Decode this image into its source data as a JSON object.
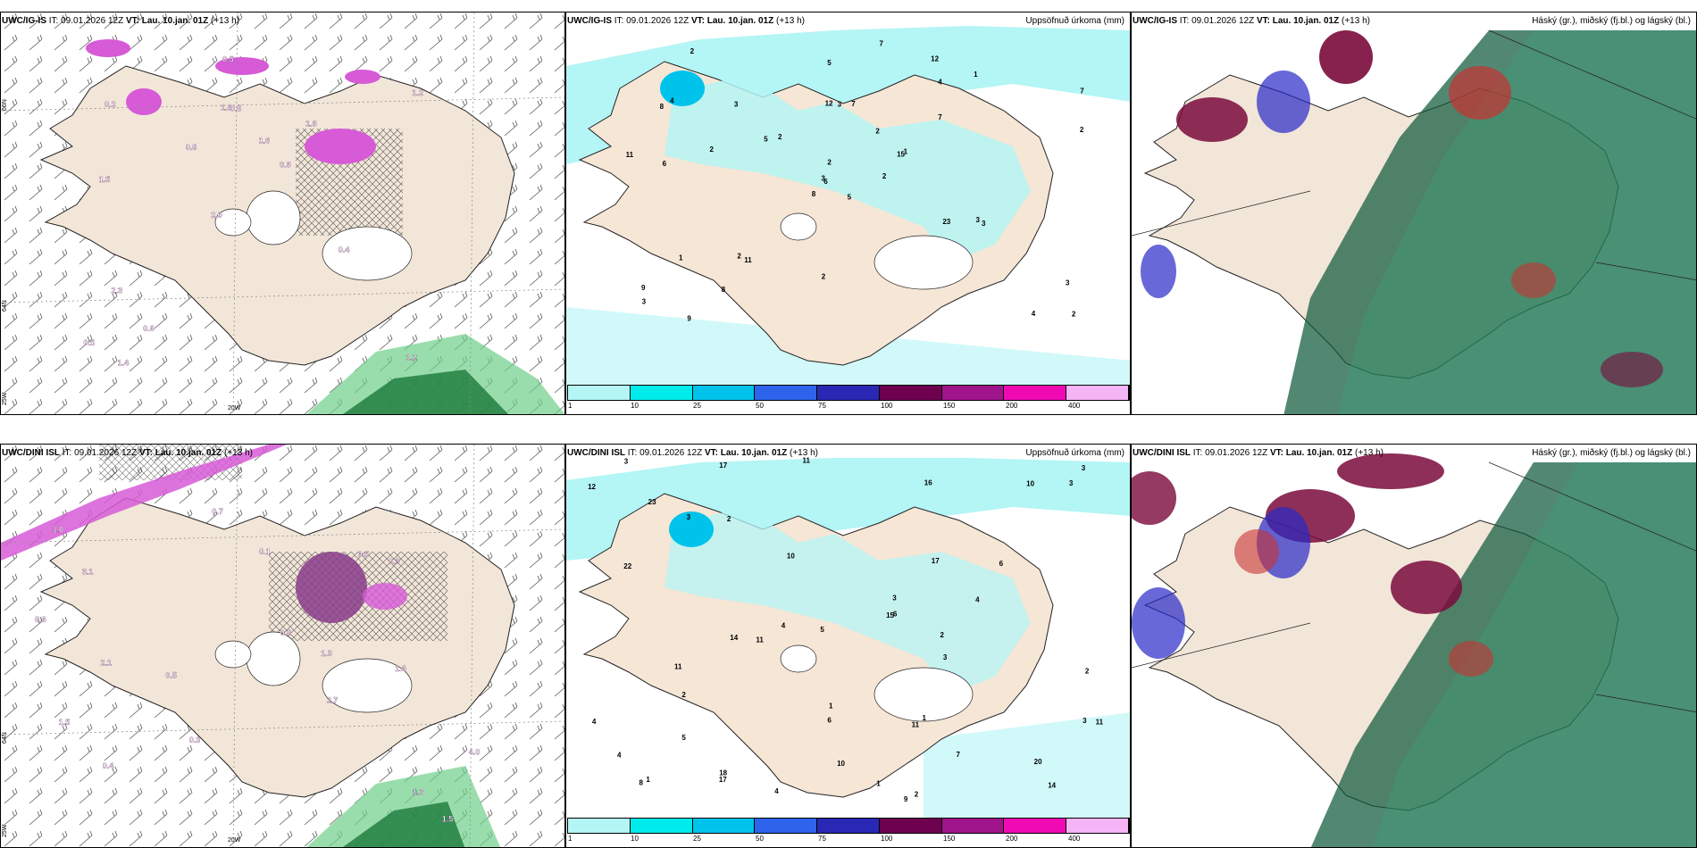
{
  "panels": [
    {
      "id": "p1",
      "model": "UWC/IG-IS",
      "it_label": "IT:",
      "it": "09.01.2026 12Z",
      "vt_label": "VT:",
      "vt": "Lau. 10.jan. 01Z",
      "lead": "(+13 h)",
      "right_title": ""
    },
    {
      "id": "p2",
      "model": "UWC/IG-IS",
      "it_label": "IT:",
      "it": "09.01.2026 12Z",
      "vt_label": "VT:",
      "vt": "Lau. 10.jan. 01Z",
      "lead": "(+13 h)",
      "right_title": "Uppsöfnuð úrkoma (mm)"
    },
    {
      "id": "p3",
      "model": "UWC/IG-IS",
      "it_label": "IT:",
      "it": "09.01.2026 12Z",
      "vt_label": "VT:",
      "vt": "Lau. 10.jan. 01Z",
      "lead": "(+13 h)",
      "right_title": "Háský (gr.), miðský (fj.bl.) og lágský (bl.)"
    },
    {
      "id": "p4",
      "model": "UWC/DINI ISL",
      "it_label": "IT:",
      "it": "09.01.2026 12Z",
      "vt_label": "VT:",
      "vt": "Lau. 10.jan. 01Z",
      "lead": "(+13 h)",
      "right_title": ""
    },
    {
      "id": "p5",
      "model": "UWC/DINI ISL",
      "it_label": "IT:",
      "it": "09.01.2026 12Z",
      "vt_label": "VT:",
      "vt": "Lau. 10.jan. 01Z",
      "lead": "(+13 h)",
      "right_title": "Uppsöfnuð úrkoma (mm)"
    },
    {
      "id": "p6",
      "model": "UWC/DINI ISL",
      "it_label": "IT:",
      "it": "09.01.2026 12Z",
      "vt_label": "VT:",
      "vt": "Lau. 10.jan. 01Z",
      "lead": "(+13 h)",
      "right_title": "Háský (gr.), miðský (fj.bl.) og lágský (bl.)"
    }
  ],
  "colorbar": {
    "labels": [
      "1",
      "10",
      "25",
      "50",
      "75",
      "100",
      "150",
      "200",
      "400"
    ],
    "colors": [
      "#b4f5f5",
      "#00ebeb",
      "#00c3eb",
      "#2d64eb",
      "#2828b4",
      "#6e0050",
      "#a0148c",
      "#f00ab4",
      "#f5b4f5"
    ]
  },
  "axis_ticks": {
    "lon_20w": "20W",
    "lat_66n": "66N",
    "lat_64n": "64N",
    "lon_25w": "25W"
  },
  "pressure_labels_top": [
    "1.2",
    "1.5",
    "1.2",
    "2.0",
    "1.8",
    "1.4",
    "1.8",
    "1.6",
    "2.3",
    "0.8",
    "0.5",
    "0.6",
    "0.5",
    "0.6",
    "0.4",
    "0.2",
    "0.5"
  ],
  "pressure_labels_bottom": [
    "1.5",
    "2.1",
    "2.7",
    "1.0",
    "4.0",
    "3.1",
    "0.4",
    "0.5",
    "0.3",
    "0.1",
    "0.5",
    "1.3",
    "0.3",
    "0.7",
    "1.3",
    "1.5",
    "1.6",
    "0.8",
    "0.6"
  ],
  "precip_labels_top": [
    "5",
    "8",
    "6",
    "9",
    "15",
    "11",
    "12",
    "7",
    "4",
    "2",
    "2",
    "2",
    "6",
    "7",
    "8",
    "7",
    "9",
    "12",
    "2",
    "1",
    "2",
    "3",
    "8",
    "3",
    "1",
    "3",
    "4",
    "5",
    "11",
    "23",
    "2",
    "3",
    "2",
    "2",
    "3",
    "1",
    "2",
    "4",
    "3",
    "3",
    "7",
    "5",
    "2"
  ],
  "precip_labels_bottom": [
    "4",
    "9",
    "18",
    "7",
    "17",
    "23",
    "14",
    "14",
    "11",
    "10",
    "10",
    "10",
    "4",
    "6",
    "16",
    "15",
    "22",
    "17",
    "11",
    "12",
    "11",
    "3",
    "3",
    "8",
    "6",
    "11",
    "4",
    "2",
    "3",
    "3",
    "5",
    "2",
    "1",
    "3",
    "5",
    "2",
    "3",
    "4",
    "17",
    "20",
    "6",
    "4",
    "11",
    "1",
    "2",
    "1",
    "2",
    "1",
    "3"
  ],
  "colors": {
    "land": "#f2e6d9",
    "ocean": "#ffffff",
    "precip_light": "#b4f5f5",
    "cloud_high": "#0f5a3c",
    "cloud_mid": "#7a0a3c",
    "cloud_low": "#2828c8"
  }
}
